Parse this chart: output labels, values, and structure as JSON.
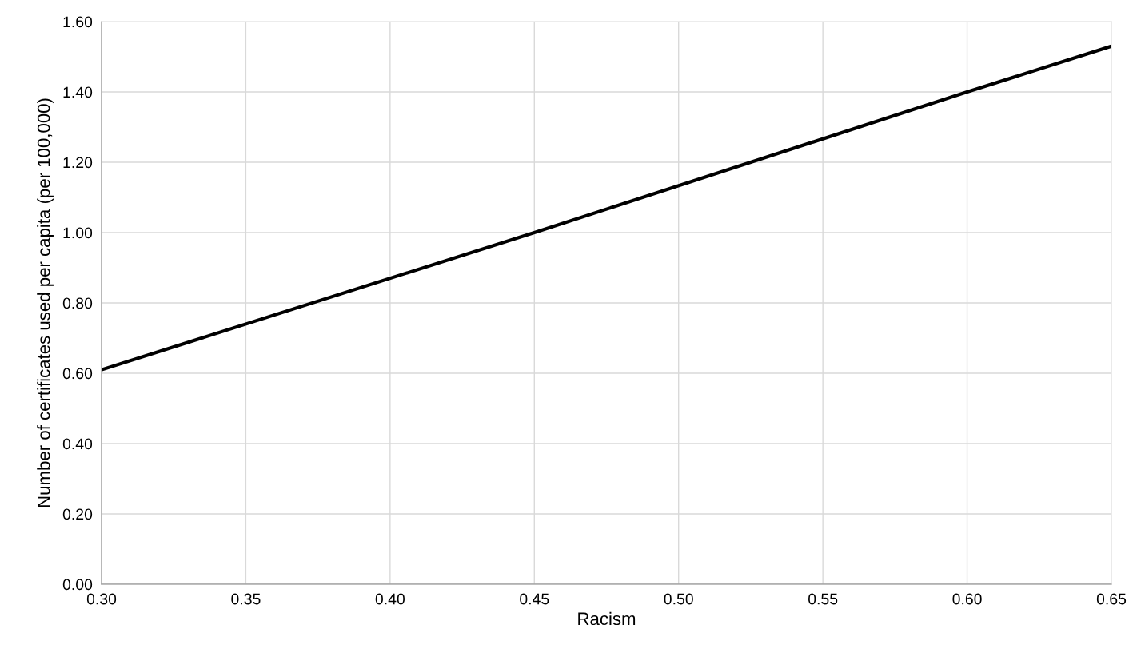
{
  "chart_data": {
    "type": "line",
    "xlabel": "Racism",
    "ylabel": "Number of certificates used per capita (per 100,000)",
    "x": [
      0.3,
      0.45,
      0.6,
      0.65
    ],
    "series": [
      {
        "color": "#000000",
        "values": [
          0.61,
          1.0,
          1.4,
          1.53
        ]
      }
    ],
    "xlim": [
      0.3,
      0.65
    ],
    "ylim": [
      0,
      1.6
    ],
    "xticks": [
      {
        "value": 0.3,
        "label": "0.30"
      },
      {
        "value": 0.35,
        "label": "0.35"
      },
      {
        "value": 0.4,
        "label": "0.40"
      },
      {
        "value": 0.45,
        "label": "0.45"
      },
      {
        "value": 0.5,
        "label": "0.50"
      },
      {
        "value": 0.55,
        "label": "0.55"
      },
      {
        "value": 0.6,
        "label": "0.60"
      },
      {
        "value": 0.65,
        "label": "0.65"
      }
    ],
    "yticks": [
      {
        "value": 0,
        "label": "0.00"
      },
      {
        "value": 0.2,
        "label": "0.20"
      },
      {
        "value": 0.4,
        "label": "0.40"
      },
      {
        "value": 0.6,
        "label": "0.60"
      },
      {
        "value": 0.8,
        "label": "0.80"
      },
      {
        "value": 1.0,
        "label": "1.00"
      },
      {
        "value": 1.2,
        "label": "1.20"
      },
      {
        "value": 1.4,
        "label": "1.40"
      },
      {
        "value": 1.6,
        "label": "1.60"
      }
    ],
    "grid": true,
    "marker": "none",
    "line_style": "solid"
  }
}
